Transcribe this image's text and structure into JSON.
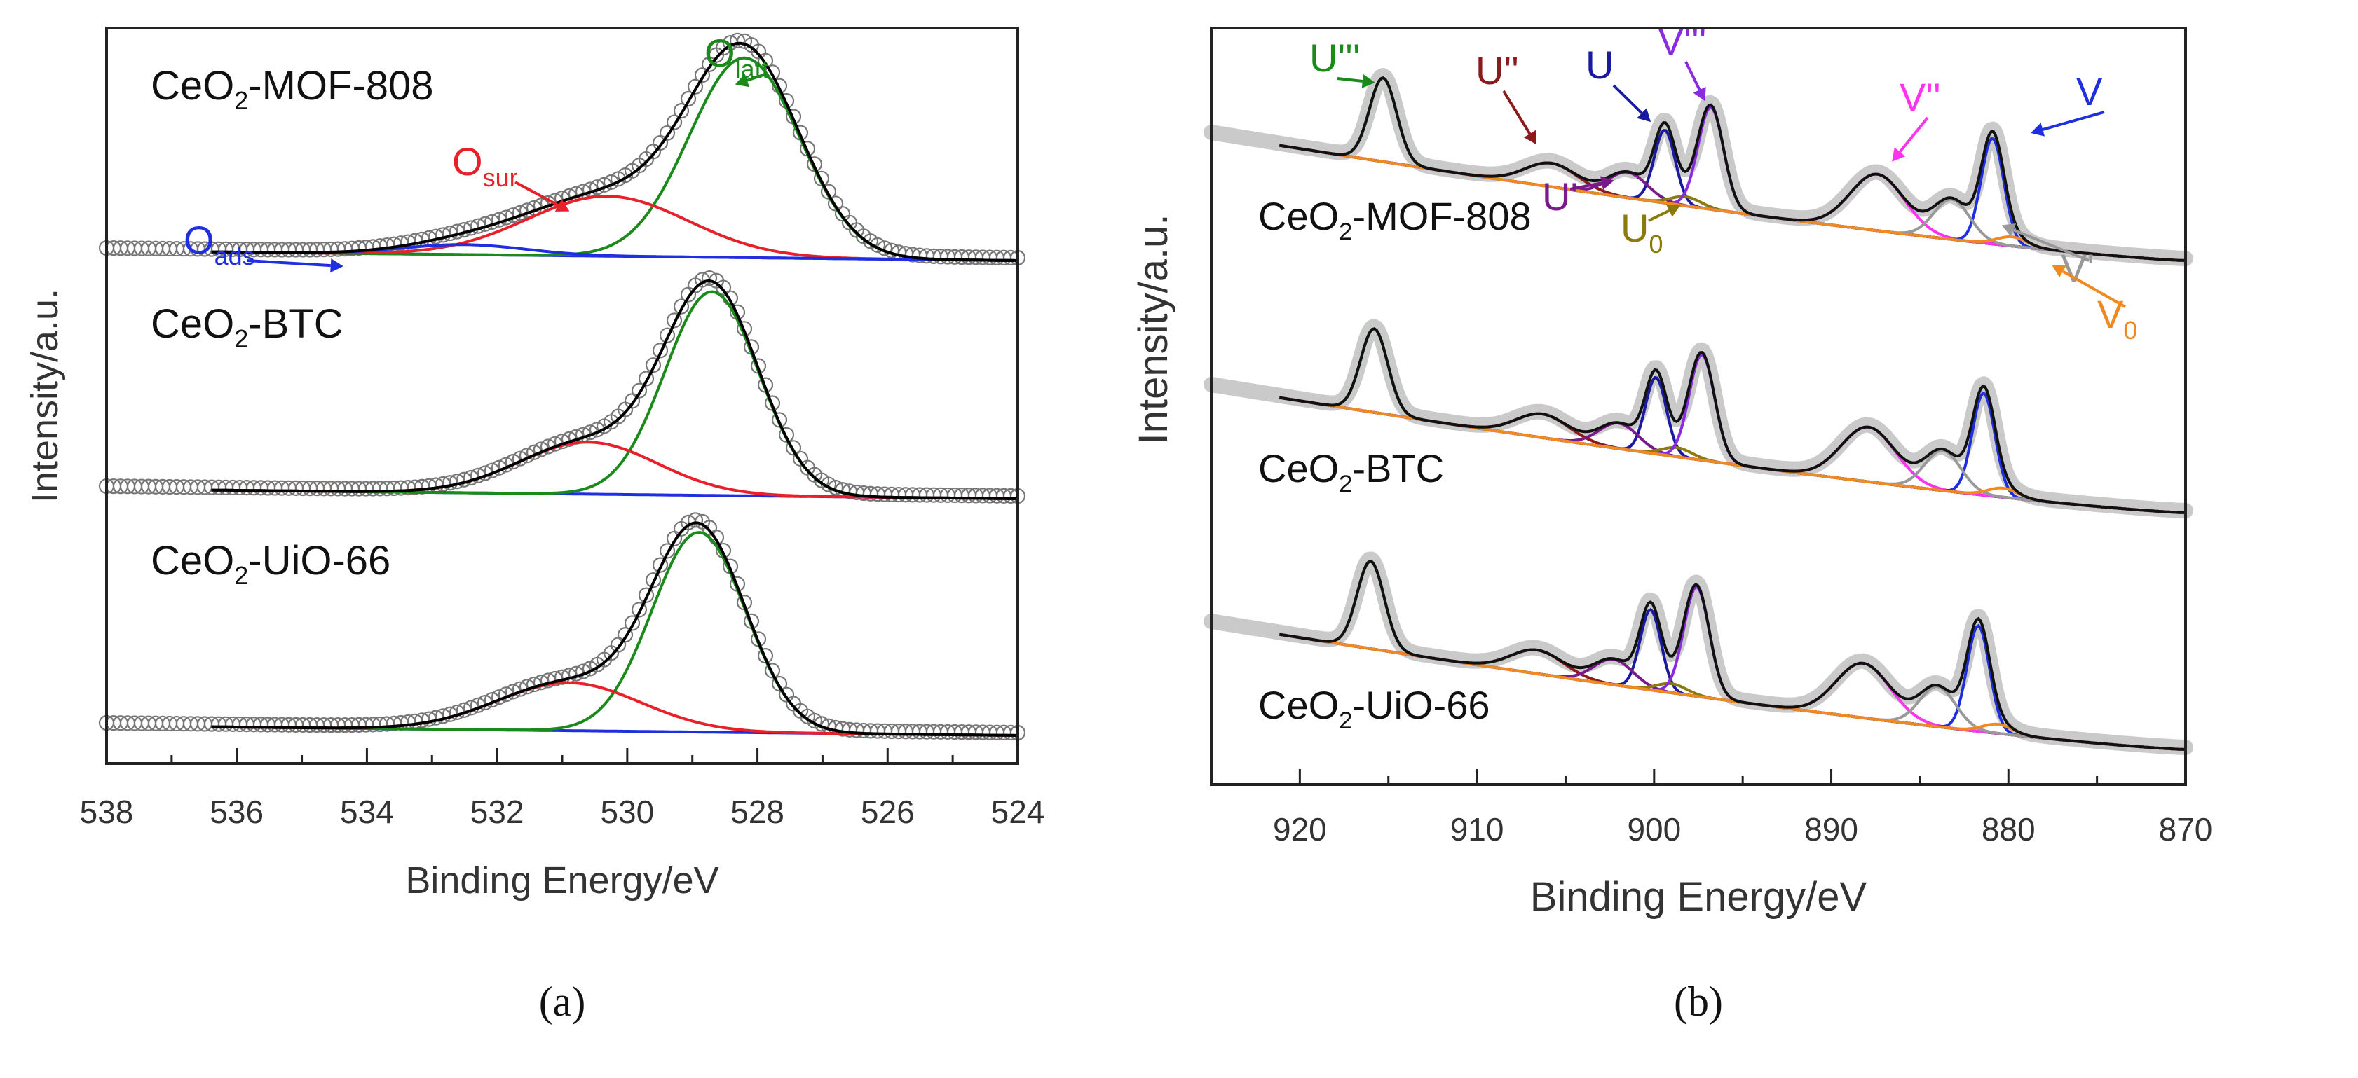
{
  "chart_data": [
    {
      "type": "line",
      "panel_label": "(a)",
      "xlabel": "Binding Energy/eV",
      "ylabel": "Intensity/a.u.",
      "xlim": [
        538,
        524
      ],
      "x_reversed": true,
      "x_ticks": [
        "538",
        "536",
        "534",
        "532",
        "530",
        "528",
        "526",
        "524"
      ],
      "x_tick_values": [
        538,
        536,
        534,
        532,
        530,
        528,
        526,
        524
      ],
      "y_ticks_shown": false,
      "colors": {
        "raw": "#777777",
        "envelope": "#000000",
        "O_latt": "#1a8a1a",
        "O_sur": "#e8202a",
        "O_ads": "#1f2fe0",
        "background": "#1f2fe0"
      },
      "samples": [
        {
          "name": "CeO2-MOF-808",
          "name_main": "CeO",
          "name_sub": "2",
          "name_rest": "-MOF-808",
          "peaks": [
            {
              "component": "O_latt",
              "center": 528.2,
              "height": 1.0,
              "fwhm": 2.0
            },
            {
              "component": "O_sur",
              "center": 530.3,
              "height": 0.3,
              "fwhm": 2.9
            },
            {
              "component": "O_ads",
              "center": 532.5,
              "height": 0.05,
              "fwhm": 2.2
            }
          ],
          "annotations": [
            {
              "component": "O_latt",
              "label": "O",
              "sub": "latt"
            },
            {
              "component": "O_sur",
              "label": "O",
              "sub": "sur"
            },
            {
              "component": "O_ads",
              "label": "O",
              "sub": "ads"
            }
          ]
        },
        {
          "name": "CeO2-BTC",
          "name_main": "CeO",
          "name_sub": "2",
          "name_rest": "-BTC",
          "peaks": [
            {
              "component": "O_latt",
              "center": 528.7,
              "height": 1.02,
              "fwhm": 1.7
            },
            {
              "component": "O_sur",
              "center": 530.6,
              "height": 0.26,
              "fwhm": 2.5
            }
          ],
          "annotations": []
        },
        {
          "name": "CeO2-UiO-66",
          "name_main": "CeO",
          "name_sub": "2",
          "name_rest": "-UiO-66",
          "peaks": [
            {
              "component": "O_latt",
              "center": 528.9,
              "height": 1.0,
              "fwhm": 1.7
            },
            {
              "component": "O_sur",
              "center": 530.9,
              "height": 0.24,
              "fwhm": 2.6
            }
          ],
          "annotations": []
        }
      ]
    },
    {
      "type": "line",
      "panel_label": "(b)",
      "xlabel": "Binding Energy/eV",
      "ylabel": "Intensity/a.u.",
      "xlim": [
        925,
        870
      ],
      "x_reversed": true,
      "x_ticks": [
        "920",
        "910",
        "900",
        "890",
        "880",
        "870"
      ],
      "x_tick_values": [
        920,
        910,
        900,
        890,
        880,
        870
      ],
      "y_ticks_shown": false,
      "colors": {
        "raw": "#9a9a9a",
        "envelope": "#111111",
        "U'''": "#1a8a1a",
        "U''": "#8b1a1a",
        "U": "#1a1aa0",
        "U'": "#7a1a8a",
        "U0": "#8a7a10",
        "V'''": "#8a2be2",
        "V''": "#ff33ee",
        "V": "#1f2fe0",
        "V'": "#999999",
        "V0": "#f08a20",
        "background": "#1a8a1a"
      },
      "samples": [
        {
          "name": "CeO2-MOF-808",
          "name_main": "CeO",
          "name_sub": "2",
          "name_rest": "-MOF-808",
          "peaks": [
            {
              "component": "U'''",
              "center": 915.3,
              "height": 0.46,
              "fwhm": 1.8
            },
            {
              "component": "U''",
              "center": 905.8,
              "height": 0.13,
              "fwhm": 3.5
            },
            {
              "component": "U",
              "center": 899.4,
              "height": 0.4,
              "fwhm": 1.4
            },
            {
              "component": "U'",
              "center": 901.5,
              "height": 0.14,
              "fwhm": 2.6
            },
            {
              "component": "U0",
              "center": 898.2,
              "height": 0.05,
              "fwhm": 2.0
            },
            {
              "component": "V'''",
              "center": 896.8,
              "height": 0.56,
              "fwhm": 1.7
            },
            {
              "component": "V''",
              "center": 887.4,
              "height": 0.31,
              "fwhm": 3.6
            },
            {
              "component": "V",
              "center": 880.9,
              "height": 0.58,
              "fwhm": 1.5
            },
            {
              "component": "V'",
              "center": 883.2,
              "height": 0.22,
              "fwhm": 2.4
            },
            {
              "component": "V0",
              "center": 879.8,
              "height": 0.05,
              "fwhm": 2.0
            }
          ],
          "annotations": [
            {
              "component": "U'''",
              "label": "U'''",
              "sub": ""
            },
            {
              "component": "U''",
              "label": "U''",
              "sub": ""
            },
            {
              "component": "U",
              "label": "U",
              "sub": ""
            },
            {
              "component": "V'''",
              "label": "V'''",
              "sub": ""
            },
            {
              "component": "V''",
              "label": "V''",
              "sub": ""
            },
            {
              "component": "V",
              "label": "V",
              "sub": ""
            },
            {
              "component": "U'",
              "label": "U'",
              "sub": ""
            },
            {
              "component": "U0",
              "label": "U",
              "sub": "0"
            },
            {
              "component": "V'",
              "label": "V'",
              "sub": ""
            },
            {
              "component": "V0",
              "label": "V",
              "sub": "0"
            }
          ]
        },
        {
          "name": "CeO2-BTC",
          "name_main": "CeO",
          "name_sub": "2",
          "name_rest": "-BTC",
          "peaks": [
            {
              "component": "U'''",
              "center": 915.8,
              "height": 0.46,
              "fwhm": 1.8
            },
            {
              "component": "U''",
              "center": 906.3,
              "height": 0.13,
              "fwhm": 3.5
            },
            {
              "component": "U",
              "center": 899.9,
              "height": 0.42,
              "fwhm": 1.4
            },
            {
              "component": "U'",
              "center": 902.0,
              "height": 0.14,
              "fwhm": 2.6
            },
            {
              "component": "U0",
              "center": 898.7,
              "height": 0.05,
              "fwhm": 2.0
            },
            {
              "component": "V'''",
              "center": 897.3,
              "height": 0.58,
              "fwhm": 1.7
            },
            {
              "component": "V''",
              "center": 887.9,
              "height": 0.3,
              "fwhm": 3.6
            },
            {
              "component": "V",
              "center": 881.4,
              "height": 0.56,
              "fwhm": 1.5
            },
            {
              "component": "V'",
              "center": 883.7,
              "height": 0.22,
              "fwhm": 2.4
            },
            {
              "component": "V0",
              "center": 880.3,
              "height": 0.05,
              "fwhm": 2.0
            }
          ],
          "annotations": []
        },
        {
          "name": "CeO2-UiO-66",
          "name_main": "CeO",
          "name_sub": "2",
          "name_rest": "-UiO-66",
          "peaks": [
            {
              "component": "U'''",
              "center": 916.0,
              "height": 0.48,
              "fwhm": 1.8
            },
            {
              "component": "U''",
              "center": 906.6,
              "height": 0.13,
              "fwhm": 3.5
            },
            {
              "component": "U",
              "center": 900.2,
              "height": 0.44,
              "fwhm": 1.4
            },
            {
              "component": "U'",
              "center": 902.3,
              "height": 0.14,
              "fwhm": 2.6
            },
            {
              "component": "U0",
              "center": 899.0,
              "height": 0.05,
              "fwhm": 2.0
            },
            {
              "component": "V'''",
              "center": 897.6,
              "height": 0.6,
              "fwhm": 1.7
            },
            {
              "component": "V''",
              "center": 888.2,
              "height": 0.3,
              "fwhm": 3.6
            },
            {
              "component": "V",
              "center": 881.7,
              "height": 0.58,
              "fwhm": 1.5
            },
            {
              "component": "V'",
              "center": 884.0,
              "height": 0.22,
              "fwhm": 2.4
            },
            {
              "component": "V0",
              "center": 880.6,
              "height": 0.05,
              "fwhm": 2.0
            }
          ],
          "annotations": []
        }
      ]
    }
  ]
}
